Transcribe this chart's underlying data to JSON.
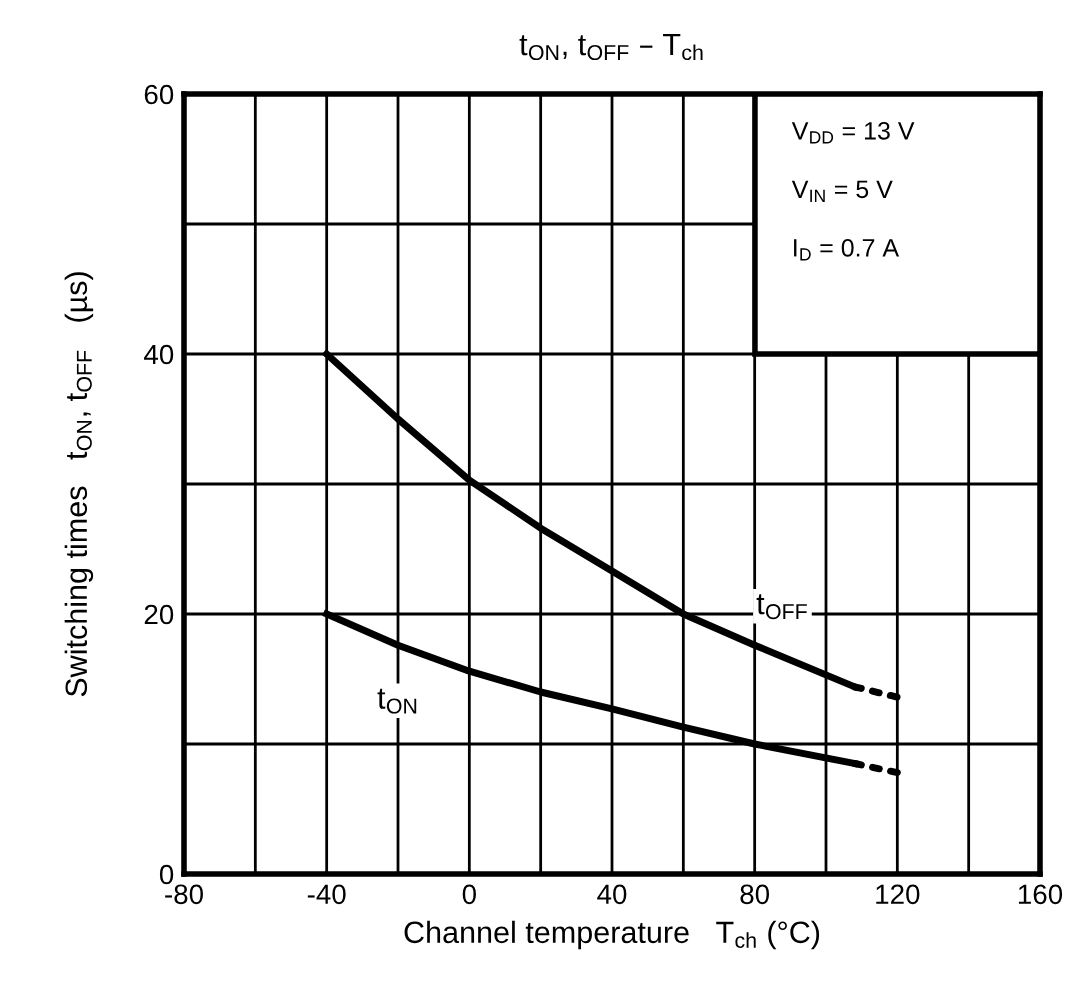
{
  "chart_data": {
    "type": "line",
    "title": "t$_{ON}$, t$_{OFF}$ – T$_{ch}$",
    "xlabel": "Channel temperature   T$_{ch}$ (°C)",
    "ylabel": "Switching times   t$_{ON}$, t$_{OFF}$   (µs)",
    "annotations": [
      "V$_{DD}$ = 13 V",
      "V$_{IN}$ = 5 V",
      "I$_{D}$ = 0.7 A"
    ],
    "series": [
      {
        "name": "t$_{OFF}$",
        "color": "#000000",
        "line_style": "solid",
        "x": [
          -40,
          -20,
          0,
          20,
          40,
          60,
          80,
          108
        ],
        "values": [
          40,
          35,
          30.3,
          26.6,
          23.3,
          20,
          17.6,
          14.4
        ]
      },
      {
        "color": "#000000",
        "line_style": "dotted",
        "x": [
          108,
          120
        ],
        "values": [
          14.4,
          13.6
        ]
      },
      {
        "name": "t$_{ON}$",
        "color": "#000000",
        "line_style": "solid",
        "x": [
          -40,
          -20,
          0,
          20,
          40,
          60,
          80,
          108
        ],
        "values": [
          20,
          17.6,
          15.6,
          14,
          12.7,
          11.3,
          10,
          8.5
        ]
      },
      {
        "color": "#000000",
        "line_style": "dotted",
        "x": [
          108,
          120
        ],
        "values": [
          8.5,
          7.8
        ]
      }
    ],
    "xlim": [
      -80,
      160
    ],
    "ylim": [
      0,
      60
    ],
    "xticks": [
      -80,
      {
        "value": -60,
        "label": null
      },
      -40,
      {
        "value": -20,
        "label": null
      },
      0,
      {
        "value": 20,
        "label": null
      },
      40,
      {
        "value": 60,
        "label": null
      },
      80,
      {
        "value": 100,
        "label": null
      },
      120,
      {
        "value": 140,
        "label": null
      },
      160
    ],
    "yticks": [
      0,
      {
        "value": 10,
        "label": null
      },
      20,
      {
        "value": 30,
        "label": null
      },
      40,
      {
        "value": 50,
        "label": null
      },
      60
    ],
    "grid": true,
    "legend": false,
    "marker": "none"
  }
}
